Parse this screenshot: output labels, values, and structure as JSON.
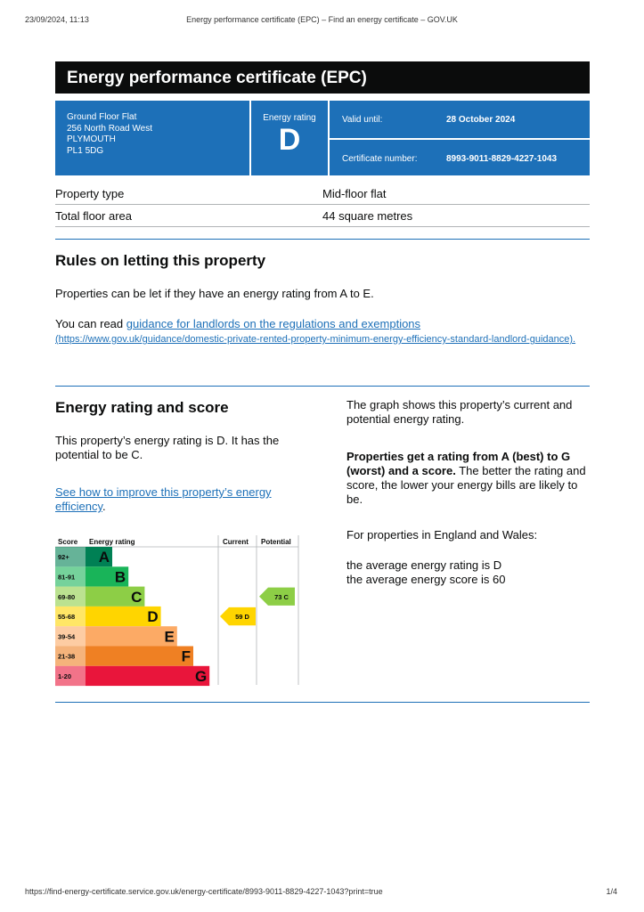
{
  "print_header": {
    "datetime": "23/09/2024, 11:13",
    "page_title": "Energy performance certificate (EPC) – Find an energy certificate – GOV.UK"
  },
  "title": "Energy performance certificate (EPC)",
  "summary": {
    "address": [
      "Ground Floor Flat",
      "256 North Road West",
      "PLYMOUTH",
      "PL1 5DG"
    ],
    "rating_label": "Energy rating",
    "rating": "D",
    "valid_label": "Valid until:",
    "valid_until": "28 October 2024",
    "certificate_label": "Certificate number:",
    "certificate_number": "8993-9011-8829-4227-1043"
  },
  "property_table": {
    "rows": [
      [
        "Property type",
        "Mid-floor flat"
      ],
      [
        "Total floor area",
        "44 square metres"
      ]
    ]
  },
  "letting": {
    "heading": "Rules on letting this property",
    "paragraph": "Properties can be let if they have an energy rating from A to E.",
    "read_prefix": "You can read",
    "link_text": "guidance for landlords on the regulations and exemptions",
    "link_url": "(https://www.gov.uk/guidance/domestic-private-rented-property-minimum-energy-efficiency-standard-landlord-guidance)."
  },
  "rating_section": {
    "heading": "Energy rating and score",
    "paragraph": "This property’s energy rating is D. It has the potential to be C.",
    "link_text": "See how to improve this property’s energy efficiency",
    "link_suffix": ".",
    "graph_intro": "The graph shows this property’s current and potential energy rating.",
    "bold_text": "Properties get a rating from A (best) to G (worst) and a score.",
    "rest_text": "The better the rating and score, the lower your energy bills are likely to be.",
    "region_text": "For properties in England and Wales:",
    "average_rating": "the average energy rating is D",
    "average_score": "the average energy score is 60"
  },
  "chart_data": {
    "type": "epc",
    "headers": [
      "Score",
      "Energy rating",
      "Current",
      "Potential"
    ],
    "bands": [
      {
        "range": "92+",
        "letter": "A",
        "color": "#008054"
      },
      {
        "range": "81-91",
        "letter": "B",
        "color": "#19b459"
      },
      {
        "range": "69-80",
        "letter": "C",
        "color": "#8dce46"
      },
      {
        "range": "55-68",
        "letter": "D",
        "color": "#ffd500"
      },
      {
        "range": "39-54",
        "letter": "E",
        "color": "#fcaa65"
      },
      {
        "range": "21-38",
        "letter": "F",
        "color": "#ef8023"
      },
      {
        "range": "1-20",
        "letter": "G",
        "color": "#e9153b"
      }
    ],
    "current": {
      "score": 59,
      "rating": "D"
    },
    "potential": {
      "score": 73,
      "rating": "C"
    }
  },
  "print_footer": {
    "url": "https://find-energy-certificate.service.gov.uk/energy-certificate/8993-9011-8829-4227-1043?print=true",
    "page": "1/4"
  }
}
